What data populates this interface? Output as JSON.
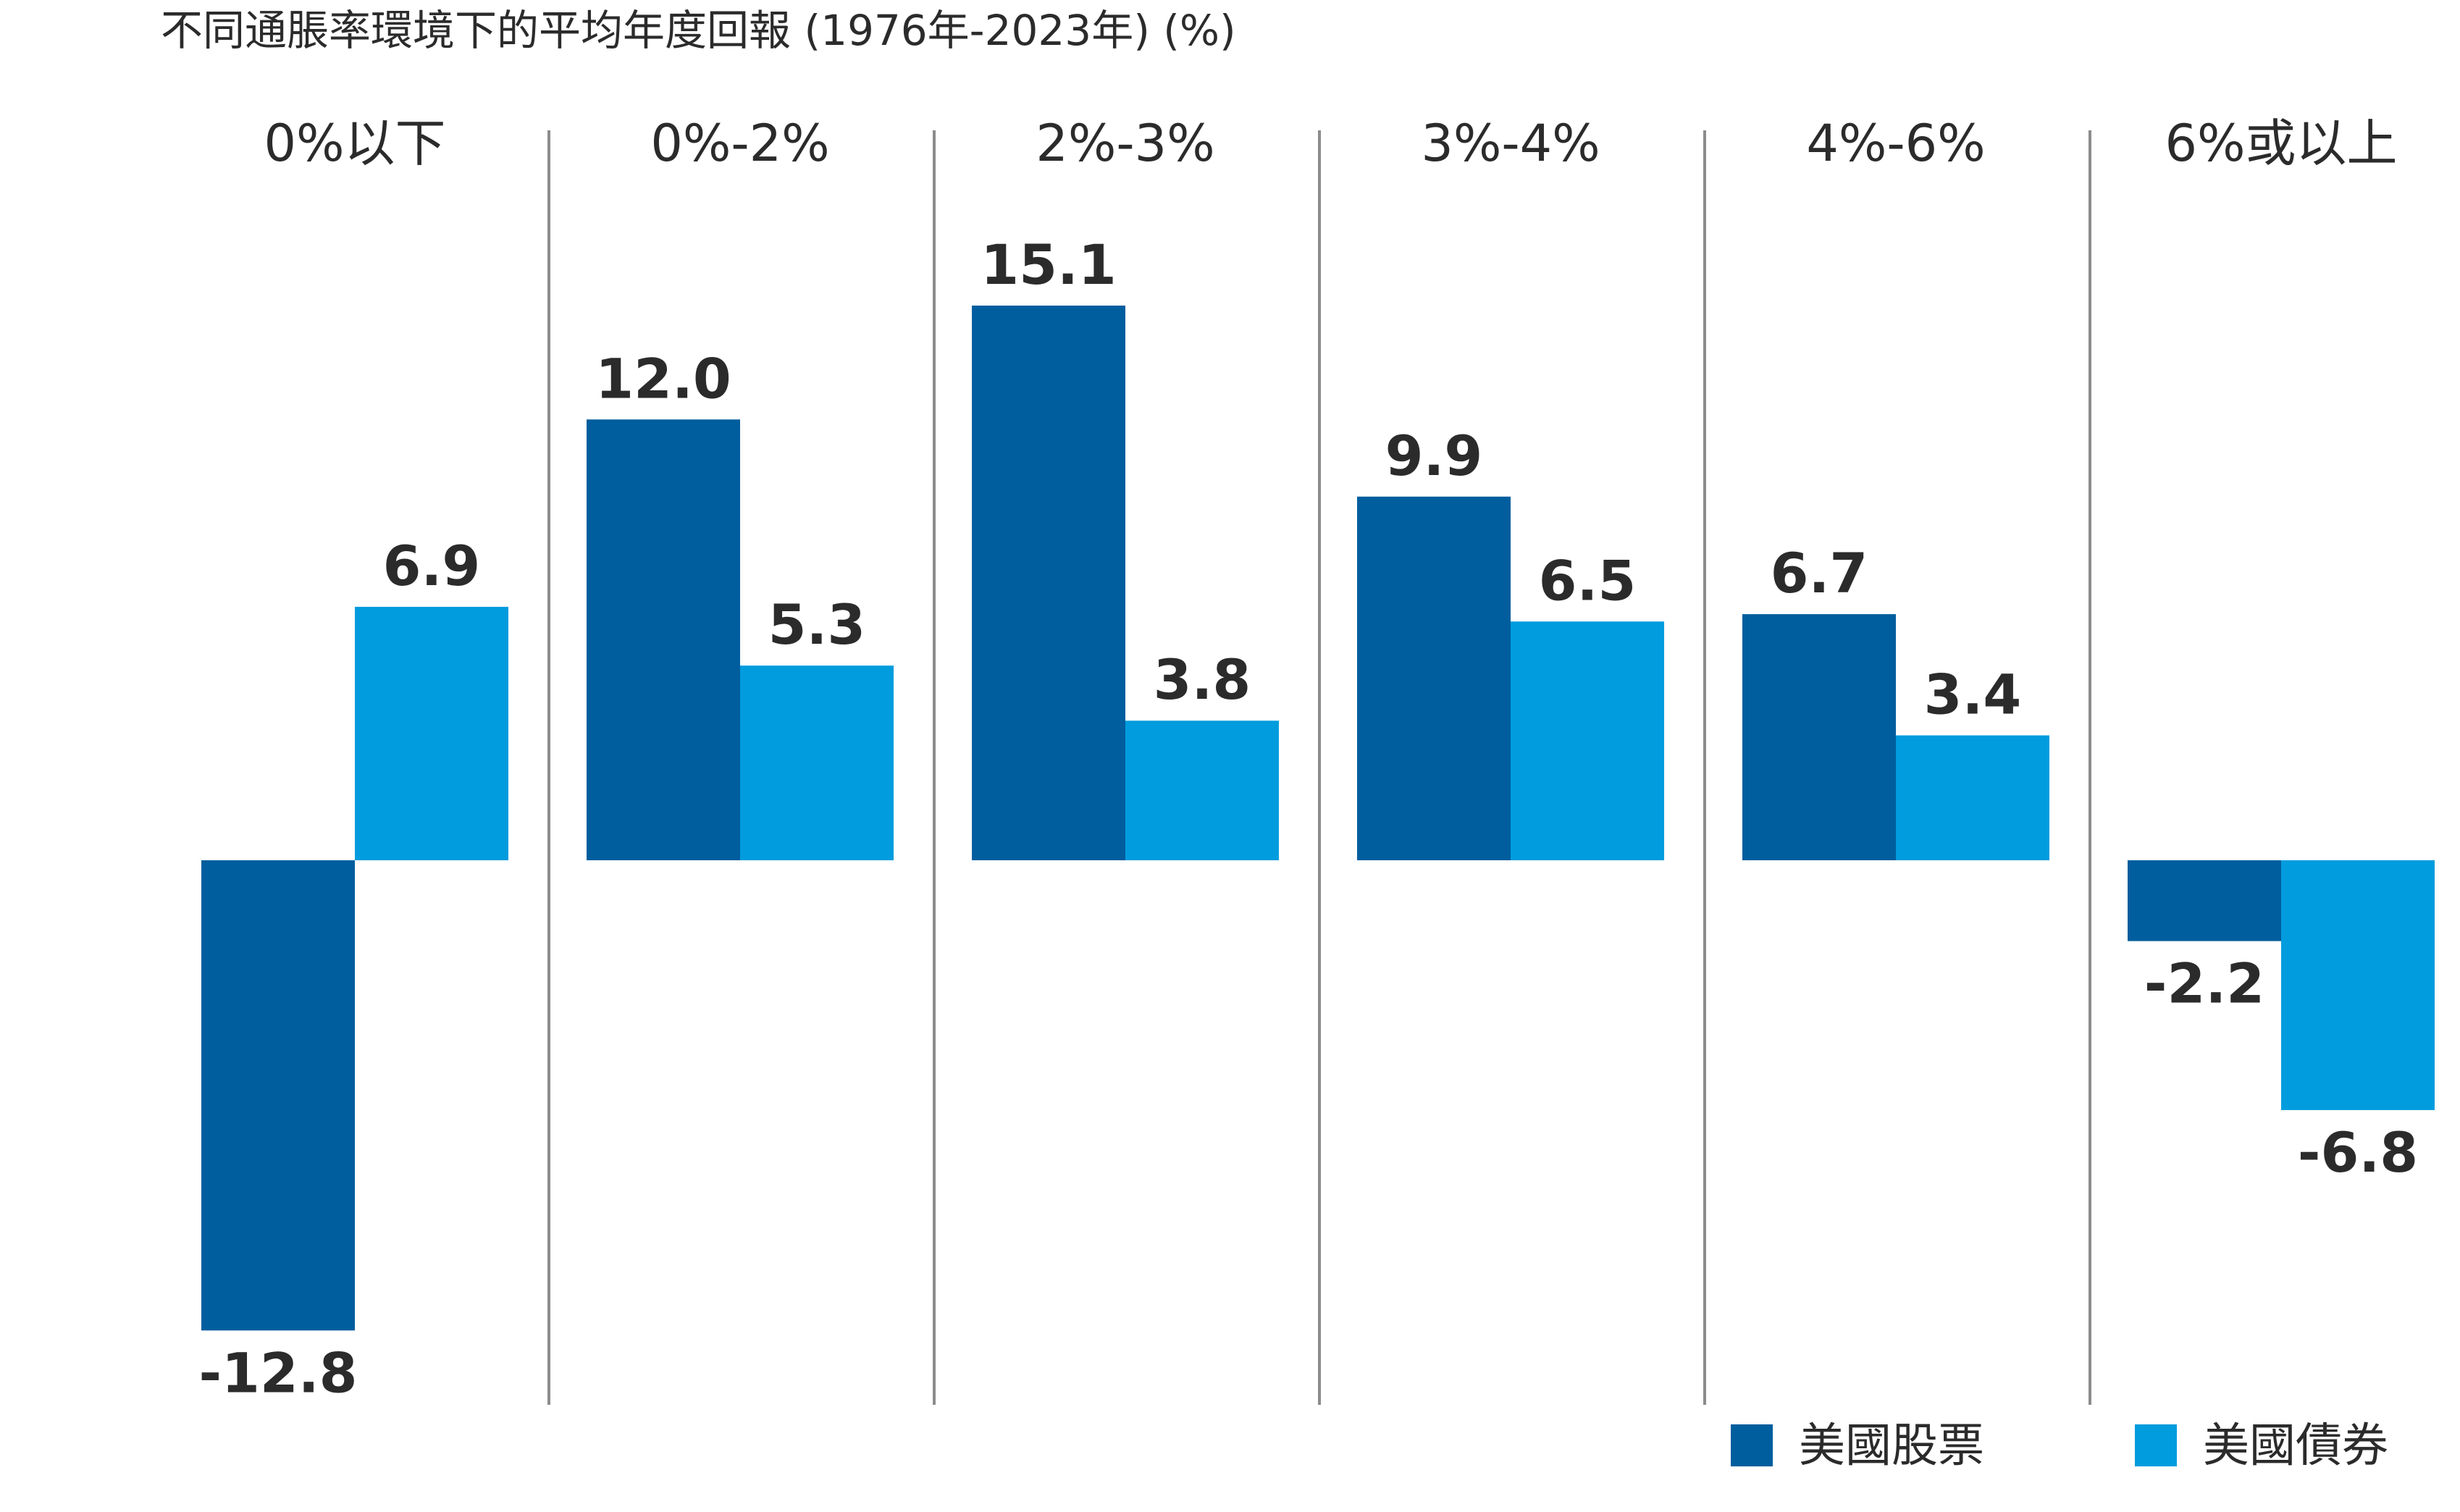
{
  "chart_data": {
    "type": "bar",
    "title": "不同通脹率環境下的平均年度回報 (1976年-2023年) (%)",
    "categories": [
      "0%以下",
      "0%-2%",
      "2%-3%",
      "3%-4%",
      "4%-6%",
      "6%或以上"
    ],
    "series": [
      {
        "name": "美國股票",
        "color": "#005E9E",
        "values": [
          -12.8,
          12.0,
          15.1,
          9.9,
          6.7,
          -2.2
        ]
      },
      {
        "name": "美國債券",
        "color": "#009CDE",
        "values": [
          6.9,
          5.3,
          3.8,
          6.5,
          3.4,
          -6.8
        ]
      }
    ],
    "value_labels": {
      "series_0": [
        "-12.8",
        "12.0",
        "15.1",
        "9.9",
        "6.7",
        "-2.2"
      ],
      "series_1": [
        "6.9",
        "5.3",
        "3.8",
        "6.5",
        "3.4",
        "-6.8"
      ]
    },
    "ylim": [
      -12.8,
      15.1
    ],
    "grid": false,
    "legend": "bottom-right",
    "separator_color": "#8c8c8c",
    "text_color": "#2b2b2b"
  }
}
